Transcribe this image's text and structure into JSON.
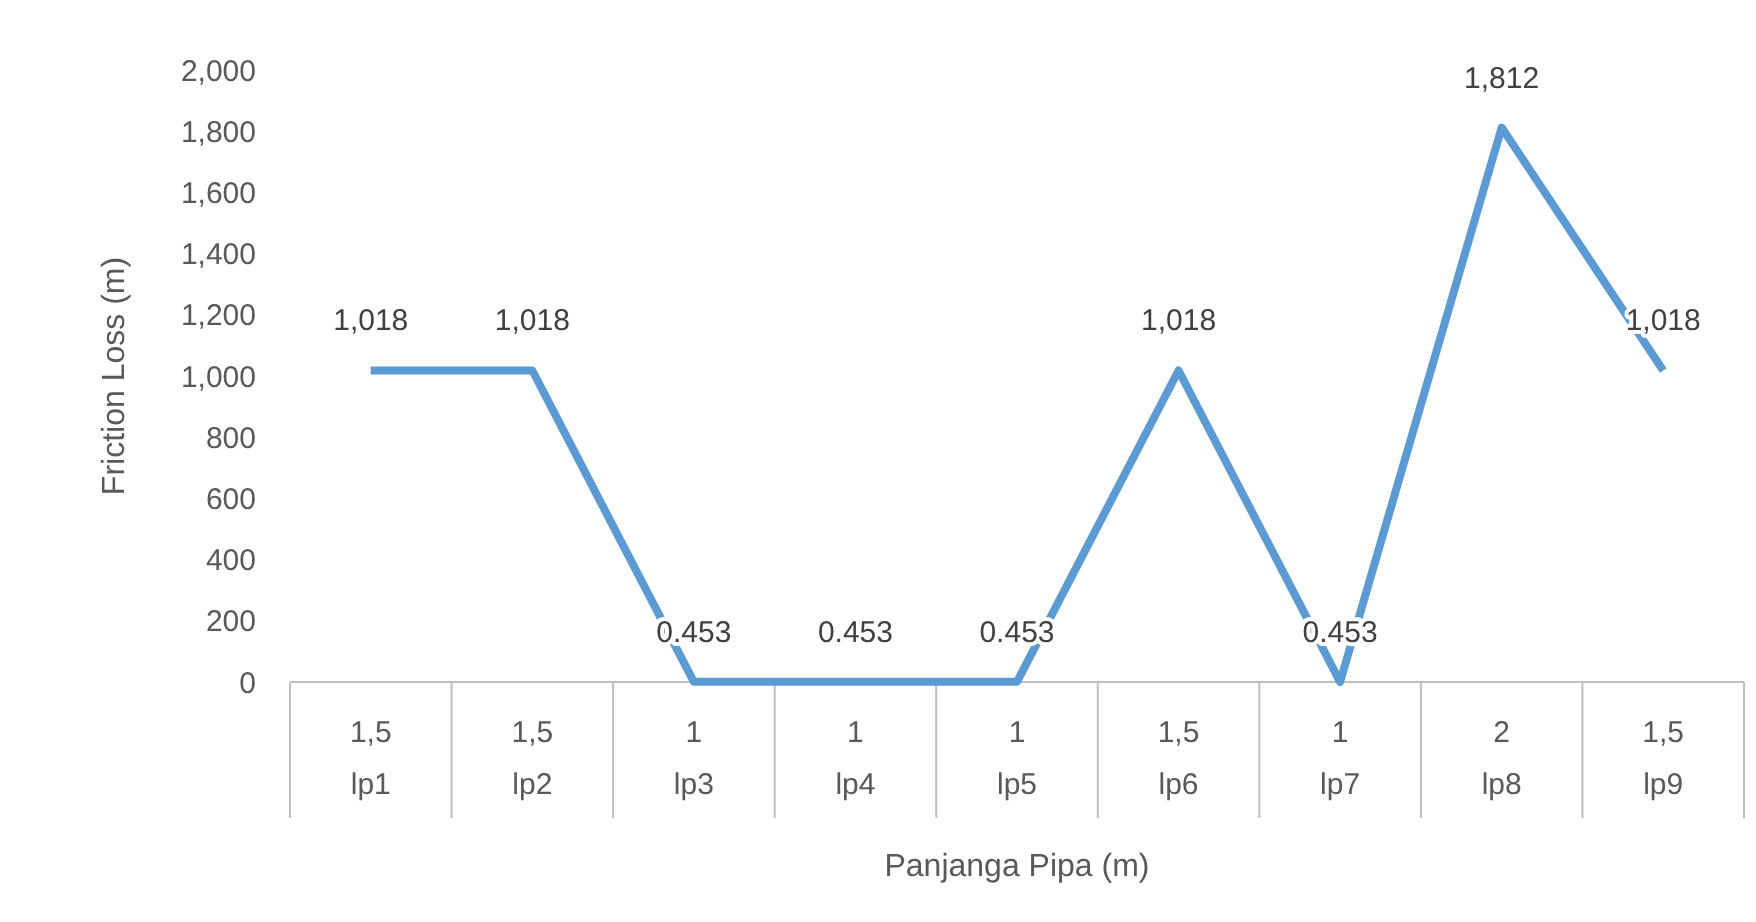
{
  "chart_data": {
    "type": "line",
    "xlabel": "Panjanga Pipa (m)",
    "ylabel": "Friction Loss (m)",
    "categories": [
      "1,5\nlp1",
      "1,5\nlp2",
      "1\nlp3",
      "1\nlp4",
      "1\nlp5",
      "1,5\nlp6",
      "1\nlp7",
      "2\nlp8",
      "1,5\nlp9"
    ],
    "series": [
      {
        "color": "#5b9bd5",
        "values": [
          1018,
          1018,
          0.453,
          0.453,
          0.453,
          1018,
          0.453,
          1812,
          1018
        ],
        "value_labels": [
          "1,018",
          "1,018",
          "0.453",
          "0.453",
          "0.453",
          "1,018",
          "0.453",
          "1,812",
          "1,018"
        ]
      }
    ],
    "ylim": [
      0,
      2000
    ],
    "yticks": [
      {
        "value": 0,
        "label": "0"
      },
      {
        "value": 200,
        "label": "200"
      },
      {
        "value": 400,
        "label": "400"
      },
      {
        "value": 600,
        "label": "600"
      },
      {
        "value": 800,
        "label": "800"
      },
      {
        "value": 1000,
        "label": "1,000"
      },
      {
        "value": 1200,
        "label": "1,200"
      },
      {
        "value": 1400,
        "label": "1,400"
      },
      {
        "value": 1600,
        "label": "1,600"
      },
      {
        "value": 1800,
        "label": "1,800"
      },
      {
        "value": 2000,
        "label": "2,000"
      }
    ],
    "grid": false,
    "marker": "none",
    "line_style": "solid"
  }
}
